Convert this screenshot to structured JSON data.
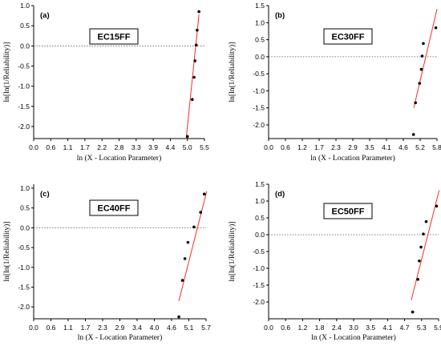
{
  "chart_data": [
    {
      "type": "scatter",
      "panel_tag": "(a)",
      "label": "EC15FF",
      "xlabel": "ln (X - Location Parameter)",
      "ylabel": "ln[ln(1/Reliability)]",
      "xlim": [
        0,
        5.6
      ],
      "ylim": [
        -2.3,
        1.0
      ],
      "xticks": [
        "0.0",
        "0.6",
        "1.1",
        "1.7",
        "2.2",
        "2.8",
        "3.3",
        "3.9",
        "4.4",
        "5.0",
        "5.5"
      ],
      "yticks": [
        "1.0",
        "0.5",
        "0.0",
        "-0.5",
        "-1.0",
        "-1.5",
        "-2.0"
      ],
      "points": {
        "x": [
          5.04,
          5.2,
          5.26,
          5.29,
          5.33,
          5.36,
          5.42
        ],
        "y": [
          -2.25,
          -1.33,
          -0.78,
          -0.37,
          0.02,
          0.39,
          0.85
        ]
      },
      "fit_line": {
        "x": [
          5.0,
          5.42
        ],
        "y": [
          -2.3,
          0.78
        ]
      },
      "reference_y": 0
    },
    {
      "type": "scatter",
      "panel_tag": "(b)",
      "label": "EC30FF",
      "xlabel": "ln (X - Location Parameter)",
      "ylabel": "ln[ln(1/Reliability)]",
      "xlim": [
        0,
        5.8
      ],
      "ylim": [
        -2.4,
        1.5
      ],
      "xticks": [
        "0.0",
        "0.6",
        "1.2",
        "1.7",
        "2.3",
        "2.9",
        "3.5",
        "4.1",
        "4.6",
        "5.2",
        "5.8"
      ],
      "yticks": [
        "1.5",
        "1.0",
        "0.5",
        "0.0",
        "-0.5",
        "-1.0",
        "-1.5",
        "-2.0"
      ],
      "points": {
        "x": [
          4.99,
          5.06,
          5.2,
          5.26,
          5.29,
          5.33,
          5.76
        ],
        "y": [
          -2.28,
          -1.35,
          -0.78,
          -0.37,
          0.02,
          0.39,
          0.85
        ]
      },
      "fit_line": {
        "x": [
          5.0,
          5.8
        ],
        "y": [
          -1.5,
          1.4
        ]
      },
      "reference_y": 0
    },
    {
      "type": "scatter",
      "panel_tag": "(c)",
      "label": "EC40FF",
      "xlabel": "ln (X - Location Parameter)",
      "ylabel": "ln[ln(1/Reliability)]",
      "xlim": [
        0,
        5.7
      ],
      "ylim": [
        -2.3,
        1.1
      ],
      "xticks": [
        "0.0",
        "0.6",
        "1.1",
        "1.7",
        "2.3",
        "2.9",
        "3.4",
        "4.0",
        "4.6",
        "5.1",
        "5.7"
      ],
      "yticks": [
        "1.0",
        "0.5",
        "0.0",
        "-0.5",
        "-1.0",
        "-1.5",
        "-2.0"
      ],
      "points": {
        "x": [
          4.8,
          4.92,
          5.0,
          5.1,
          5.3,
          5.52,
          5.64
        ],
        "y": [
          -2.25,
          -1.33,
          -0.78,
          -0.37,
          0.02,
          0.39,
          0.85
        ]
      },
      "fit_line": {
        "x": [
          4.8,
          5.72
        ],
        "y": [
          -1.85,
          0.92
        ]
      },
      "reference_y": 0
    },
    {
      "type": "scatter",
      "panel_tag": "(d)",
      "label": "EC50FF",
      "xlabel": "ln (X - Location Parameter)",
      "ylabel": "ln[ln(1/Reliability)]",
      "xlim": [
        0,
        5.9
      ],
      "ylim": [
        -2.5,
        1.5
      ],
      "xticks": [
        "0.0",
        "0.6",
        "1.2",
        "1.8",
        "2.4",
        "3.0",
        "3.5",
        "4.1",
        "4.7",
        "5.3",
        "5.9"
      ],
      "yticks": [
        "1.5",
        "1.0",
        "0.5",
        "0.0",
        "-0.5",
        "-1.0",
        "-1.5",
        "-2.0"
      ],
      "points": {
        "x": [
          5.0,
          5.18,
          5.23,
          5.29,
          5.37,
          5.47,
          5.83
        ],
        "y": [
          -2.3,
          -1.33,
          -0.78,
          -0.37,
          0.02,
          0.39,
          0.85
        ]
      },
      "fit_line": {
        "x": [
          4.95,
          5.92
        ],
        "y": [
          -1.95,
          1.32
        ]
      },
      "reference_y": 0
    }
  ]
}
